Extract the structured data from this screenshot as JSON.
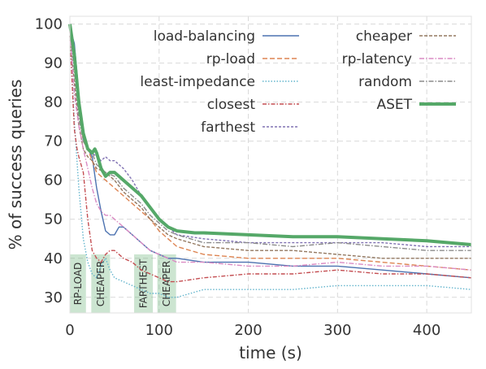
{
  "chart_data": {
    "type": "line",
    "xlabel": "time (s)",
    "ylabel": "% of success queries",
    "xlim": [
      0,
      450
    ],
    "ylim": [
      26,
      102
    ],
    "x_ticks": [
      0,
      100,
      200,
      300,
      400
    ],
    "y_ticks": [
      30,
      40,
      50,
      60,
      70,
      80,
      90,
      100
    ],
    "grid": true,
    "legend_placement": "top-right",
    "phases": [
      {
        "label": "RP-LOAD",
        "x_start": 0,
        "x_end": 18,
        "y_top": 41
      },
      {
        "label": "CHEAPER",
        "x_start": 24,
        "x_end": 45,
        "y_top": 41
      },
      {
        "label": "FARTHEST",
        "x_start": 72,
        "x_end": 93,
        "y_top": 41
      },
      {
        "label": "CHEAPER",
        "x_start": 98,
        "x_end": 119,
        "y_top": 41
      }
    ],
    "series": [
      {
        "name": "load-balancing",
        "color": "#4c72b0",
        "dash": "",
        "width": 1.4,
        "points": [
          [
            0,
            99
          ],
          [
            5,
            95
          ],
          [
            10,
            82
          ],
          [
            15,
            70
          ],
          [
            20,
            68
          ],
          [
            25,
            66
          ],
          [
            30,
            58
          ],
          [
            35,
            52
          ],
          [
            40,
            47
          ],
          [
            45,
            46
          ],
          [
            50,
            46
          ],
          [
            55,
            48
          ],
          [
            60,
            48
          ],
          [
            65,
            47
          ],
          [
            70,
            46
          ],
          [
            80,
            44
          ],
          [
            90,
            42
          ],
          [
            100,
            41
          ],
          [
            110,
            40
          ],
          [
            120,
            40
          ],
          [
            150,
            39
          ],
          [
            200,
            39
          ],
          [
            250,
            38
          ],
          [
            300,
            38
          ],
          [
            350,
            37
          ],
          [
            400,
            36
          ],
          [
            450,
            35
          ]
        ]
      },
      {
        "name": "rp-load",
        "color": "#dd8452",
        "dash": "6,3",
        "width": 1.4,
        "points": [
          [
            0,
            98
          ],
          [
            5,
            90
          ],
          [
            10,
            78
          ],
          [
            15,
            70
          ],
          [
            20,
            68
          ],
          [
            25,
            65
          ],
          [
            30,
            62
          ],
          [
            40,
            60
          ],
          [
            50,
            58
          ],
          [
            60,
            56
          ],
          [
            70,
            54
          ],
          [
            80,
            52
          ],
          [
            90,
            50
          ],
          [
            100,
            47
          ],
          [
            110,
            45
          ],
          [
            120,
            43
          ],
          [
            150,
            41
          ],
          [
            200,
            40
          ],
          [
            250,
            40
          ],
          [
            300,
            40
          ],
          [
            350,
            39
          ],
          [
            400,
            38
          ],
          [
            450,
            37
          ]
        ]
      },
      {
        "name": "least-impedance",
        "color": "#64b5cd",
        "dash": "1.5,2",
        "width": 1.4,
        "points": [
          [
            0,
            97
          ],
          [
            5,
            75
          ],
          [
            10,
            58
          ],
          [
            15,
            45
          ],
          [
            20,
            39
          ],
          [
            25,
            36
          ],
          [
            30,
            35
          ],
          [
            35,
            38
          ],
          [
            40,
            40
          ],
          [
            45,
            37
          ],
          [
            50,
            35
          ],
          [
            60,
            34
          ],
          [
            70,
            33
          ],
          [
            80,
            32
          ],
          [
            90,
            31
          ],
          [
            100,
            31
          ],
          [
            110,
            30
          ],
          [
            120,
            30
          ],
          [
            150,
            32
          ],
          [
            200,
            32
          ],
          [
            250,
            32
          ],
          [
            300,
            33
          ],
          [
            350,
            33
          ],
          [
            400,
            33
          ],
          [
            450,
            32
          ]
        ]
      },
      {
        "name": "closest",
        "color": "#c44e52",
        "dash": "5,2,1.5,2",
        "width": 1.4,
        "points": [
          [
            0,
            97
          ],
          [
            5,
            73
          ],
          [
            8,
            68
          ],
          [
            10,
            66
          ],
          [
            15,
            62
          ],
          [
            20,
            50
          ],
          [
            25,
            42
          ],
          [
            30,
            40
          ],
          [
            35,
            39
          ],
          [
            40,
            41
          ],
          [
            45,
            42
          ],
          [
            50,
            42
          ],
          [
            60,
            40
          ],
          [
            70,
            39
          ],
          [
            80,
            37
          ],
          [
            90,
            36
          ],
          [
            100,
            35
          ],
          [
            110,
            34
          ],
          [
            120,
            34
          ],
          [
            150,
            35
          ],
          [
            200,
            36
          ],
          [
            250,
            36
          ],
          [
            300,
            37
          ],
          [
            350,
            36
          ],
          [
            400,
            36
          ],
          [
            450,
            35
          ]
        ]
      },
      {
        "name": "farthest",
        "color": "#8172b3",
        "dash": "3,2",
        "width": 1.4,
        "points": [
          [
            0,
            99
          ],
          [
            5,
            92
          ],
          [
            10,
            80
          ],
          [
            15,
            72
          ],
          [
            20,
            68
          ],
          [
            25,
            67
          ],
          [
            30,
            66
          ],
          [
            35,
            65
          ],
          [
            40,
            66
          ],
          [
            45,
            65
          ],
          [
            50,
            65
          ],
          [
            60,
            63
          ],
          [
            70,
            60
          ],
          [
            80,
            56
          ],
          [
            90,
            53
          ],
          [
            100,
            50
          ],
          [
            110,
            48
          ],
          [
            120,
            46
          ],
          [
            150,
            45
          ],
          [
            200,
            44
          ],
          [
            250,
            44
          ],
          [
            300,
            44
          ],
          [
            350,
            44
          ],
          [
            400,
            43
          ],
          [
            450,
            43
          ]
        ]
      },
      {
        "name": "cheaper",
        "color": "#937860",
        "dash": "4,2",
        "width": 1.4,
        "points": [
          [
            0,
            96
          ],
          [
            5,
            85
          ],
          [
            10,
            74
          ],
          [
            15,
            68
          ],
          [
            20,
            66
          ],
          [
            25,
            65
          ],
          [
            30,
            63
          ],
          [
            40,
            62
          ],
          [
            50,
            60
          ],
          [
            60,
            57
          ],
          [
            70,
            55
          ],
          [
            80,
            53
          ],
          [
            90,
            50
          ],
          [
            100,
            48
          ],
          [
            110,
            46
          ],
          [
            120,
            45
          ],
          [
            150,
            43
          ],
          [
            200,
            42
          ],
          [
            250,
            42
          ],
          [
            300,
            41
          ],
          [
            350,
            40
          ],
          [
            400,
            40
          ],
          [
            450,
            40
          ]
        ]
      },
      {
        "name": "rp-latency",
        "color": "#da8bc3",
        "dash": "6,2,1.5,2",
        "width": 1.4,
        "points": [
          [
            0,
            98
          ],
          [
            5,
            82
          ],
          [
            10,
            74
          ],
          [
            15,
            68
          ],
          [
            20,
            63
          ],
          [
            25,
            58
          ],
          [
            30,
            54
          ],
          [
            35,
            52
          ],
          [
            40,
            51
          ],
          [
            45,
            51
          ],
          [
            50,
            50
          ],
          [
            60,
            48
          ],
          [
            70,
            46
          ],
          [
            80,
            44
          ],
          [
            90,
            42
          ],
          [
            100,
            41
          ],
          [
            110,
            40
          ],
          [
            120,
            39
          ],
          [
            150,
            39
          ],
          [
            200,
            38
          ],
          [
            250,
            38
          ],
          [
            300,
            39
          ],
          [
            350,
            38
          ],
          [
            400,
            38
          ],
          [
            450,
            37
          ]
        ]
      },
      {
        "name": "random",
        "color": "#8c8c8c",
        "dash": "6,2,1.5,2",
        "width": 1.4,
        "points": [
          [
            0,
            99
          ],
          [
            5,
            88
          ],
          [
            10,
            76
          ],
          [
            15,
            70
          ],
          [
            20,
            68
          ],
          [
            25,
            67
          ],
          [
            30,
            64
          ],
          [
            40,
            62
          ],
          [
            50,
            61
          ],
          [
            60,
            58
          ],
          [
            70,
            56
          ],
          [
            80,
            54
          ],
          [
            90,
            51
          ],
          [
            100,
            49
          ],
          [
            110,
            47
          ],
          [
            120,
            46
          ],
          [
            150,
            44
          ],
          [
            200,
            44
          ],
          [
            250,
            43
          ],
          [
            300,
            44
          ],
          [
            350,
            43
          ],
          [
            400,
            42
          ],
          [
            450,
            42
          ]
        ]
      },
      {
        "name": "ASET",
        "color": "#55a868",
        "dash": "",
        "width": 4,
        "points": [
          [
            0,
            100
          ],
          [
            5,
            92
          ],
          [
            10,
            80
          ],
          [
            15,
            72
          ],
          [
            20,
            68
          ],
          [
            25,
            67
          ],
          [
            28,
            68
          ],
          [
            30,
            67
          ],
          [
            35,
            63
          ],
          [
            40,
            61
          ],
          [
            45,
            62
          ],
          [
            50,
            62
          ],
          [
            55,
            61
          ],
          [
            60,
            60
          ],
          [
            70,
            58
          ],
          [
            80,
            56
          ],
          [
            90,
            53
          ],
          [
            100,
            50
          ],
          [
            110,
            48
          ],
          [
            120,
            47
          ],
          [
            140,
            46.5
          ],
          [
            150,
            46.5
          ],
          [
            200,
            46
          ],
          [
            250,
            45.5
          ],
          [
            300,
            45.5
          ],
          [
            350,
            45
          ],
          [
            400,
            44.5
          ],
          [
            450,
            43.5
          ]
        ]
      }
    ]
  }
}
